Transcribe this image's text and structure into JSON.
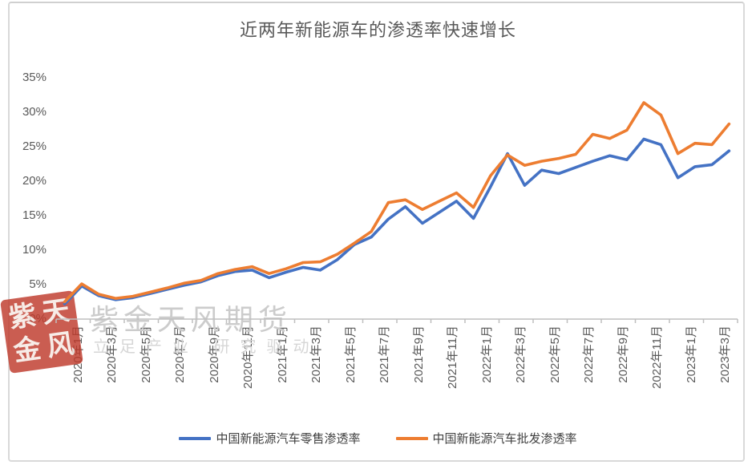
{
  "title": "近两年新能源车的渗透率快速增长",
  "watermark": {
    "main": "紫金天风期货",
    "sub": "立足产业 研究驱动",
    "seal_chars": [
      "紫",
      "天",
      "金",
      "风"
    ],
    "seal_color": "#bf3a2b"
  },
  "legend": [
    {
      "label": "中国新能源汽车零售渗透率",
      "color": "#4472C4"
    },
    {
      "label": "中国新能源汽车批发渗透率",
      "color": "#ED7D31"
    }
  ],
  "colors": {
    "retail_blue": "#4472C4",
    "wholesale_orange": "#ED7D31",
    "axis_gray": "#bfbfbf",
    "text_gray": "#595959"
  },
  "chart_data": {
    "type": "line",
    "title": "近两年新能源车的渗透率快速增长",
    "x": [
      "2020年1月",
      "2020年2月",
      "2020年3月",
      "2020年4月",
      "2020年5月",
      "2020年6月",
      "2020年7月",
      "2020年8月",
      "2020年9月",
      "2020年10月",
      "2020年11月",
      "2020年12月",
      "2021年1月",
      "2021年2月",
      "2021年3月",
      "2021年4月",
      "2021年5月",
      "2021年6月",
      "2021年7月",
      "2021年8月",
      "2021年9月",
      "2021年10月",
      "2021年11月",
      "2021年12月",
      "2022年1月",
      "2022年2月",
      "2022年3月",
      "2022年4月",
      "2022年5月",
      "2022年6月",
      "2022年7月",
      "2022年8月",
      "2022年9月",
      "2022年10月",
      "2022年11月",
      "2022年12月",
      "2023年1月",
      "2023年2月",
      "2023年3月",
      "2023年4月"
    ],
    "x_tick_labels": [
      "2020年1月",
      "2020年3月",
      "2020年5月",
      "2020年7月",
      "2020年9月",
      "2020年11月",
      "2021年1月",
      "2021年3月",
      "2021年5月",
      "2021年7月",
      "2021年9月",
      "2021年11月",
      "2022年1月",
      "2022年3月",
      "2022年5月",
      "2022年7月",
      "2022年9月",
      "2022年11月",
      "2023年1月",
      "2023年3月"
    ],
    "y_tick_labels": [
      "0%",
      "5%",
      "10%",
      "15%",
      "20%",
      "25%",
      "30%",
      "35%"
    ],
    "ylim": [
      0,
      35
    ],
    "unit": "%",
    "grid": false,
    "legend_position": "bottom",
    "series": [
      {
        "name": "中国新能源汽车零售渗透率",
        "color": "#4472C4",
        "values": [
          2.2,
          4.8,
          3.4,
          2.8,
          3.1,
          3.7,
          4.3,
          4.9,
          5.4,
          6.3,
          6.9,
          7.1,
          6.0,
          6.8,
          7.5,
          7.1,
          8.6,
          10.8,
          11.9,
          14.5,
          16.3,
          13.9,
          15.5,
          17.1,
          14.6,
          19.2,
          24.0,
          19.4,
          21.6,
          21.1,
          22.0,
          22.9,
          23.7,
          23.1,
          26.1,
          25.3,
          20.5,
          22.1,
          22.4,
          24.4
        ]
      },
      {
        "name": "中国新能源汽车批发渗透率",
        "color": "#ED7D31",
        "values": [
          2.5,
          5.1,
          3.6,
          3.0,
          3.3,
          3.9,
          4.5,
          5.2,
          5.6,
          6.6,
          7.2,
          7.6,
          6.6,
          7.3,
          8.2,
          8.3,
          9.4,
          11.0,
          12.7,
          16.9,
          17.3,
          15.9,
          17.1,
          18.3,
          16.2,
          20.8,
          23.8,
          22.3,
          22.9,
          23.3,
          23.9,
          26.8,
          26.2,
          27.4,
          31.4,
          29.6,
          24.0,
          25.5,
          25.3,
          28.3
        ]
      }
    ]
  }
}
